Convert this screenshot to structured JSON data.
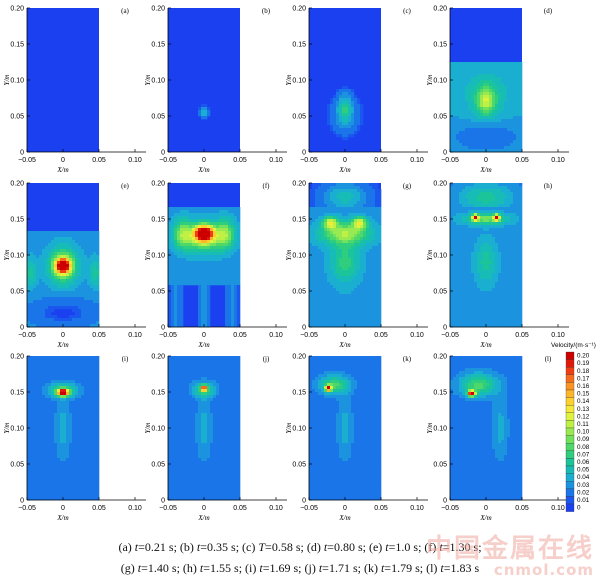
{
  "chart_data": {
    "type": "heatmap",
    "panels": [
      {
        "label": "(a)",
        "t": "0.21 s"
      },
      {
        "label": "(b)",
        "t": "0.35 s"
      },
      {
        "label": "(c)",
        "t": "0.58 s"
      },
      {
        "label": "(d)",
        "t": "0.80 s"
      },
      {
        "label": "(e)",
        "t": "1.0 s"
      },
      {
        "label": "(f)",
        "t": "1.30 s"
      },
      {
        "label": "(g)",
        "t": "1.40 s"
      },
      {
        "label": "(h)",
        "t": "1.55 s"
      },
      {
        "label": "(i)",
        "t": "1.69 s"
      },
      {
        "label": "(j)",
        "t": "1.71 s"
      },
      {
        "label": "(k)",
        "t": "1.79 s"
      },
      {
        "label": "(l)",
        "t": "1.83 s"
      }
    ],
    "xlabel": "X/m",
    "ylabel": "Y/m",
    "xlim": [
      -0.05,
      0.1
    ],
    "ylim": [
      0,
      0.2
    ],
    "xticks": [
      "−0.05",
      "0",
      "0.05",
      "0.10"
    ],
    "yticks": [
      "0",
      "0.05",
      "0.10",
      "0.15",
      "0.20"
    ],
    "colorbar": {
      "title": "Velocity/(m·s⁻¹)",
      "levels": [
        "0.20",
        "0.19",
        "0.18",
        "0.17",
        "0.16",
        "0.15",
        "0.14",
        "0.13",
        "0.12",
        "0.11",
        "0.10",
        "0.09",
        "0.08",
        "0.07",
        "0.06",
        "0.05",
        "0.04",
        "0.03",
        "0.02",
        "0.01",
        "0"
      ],
      "colors": [
        "#cc0000",
        "#e01a0a",
        "#f03d14",
        "#f76b1c",
        "#fb9424",
        "#fdb52a",
        "#fcd12f",
        "#f5e837",
        "#dff23e",
        "#bff046",
        "#99ea50",
        "#72e15b",
        "#4ed86a",
        "#2fce7f",
        "#1cc49a",
        "#18bcb6",
        "#1aaed0",
        "#1b93df",
        "#1a75e8",
        "#1a57ee",
        "#1a40f0"
      ]
    }
  },
  "caption": {
    "line1": [
      {
        "pre": "(a) ",
        "var": "t",
        "val": "=0.21 s; "
      },
      {
        "pre": "(b) ",
        "var": "t",
        "val": "=0.35 s; "
      },
      {
        "pre": "(c) ",
        "var": "T",
        "val": "=0.58 s; "
      },
      {
        "pre": "(d) ",
        "var": "t",
        "val": "=0.80 s; "
      },
      {
        "pre": "(e) ",
        "var": "t",
        "val": "=1.0 s; "
      },
      {
        "pre": "(f) ",
        "var": "t",
        "val": "=1.30 s;"
      }
    ],
    "line2": [
      {
        "pre": "(g) ",
        "var": "t",
        "val": "=1.40 s; "
      },
      {
        "pre": "(h) ",
        "var": "t",
        "val": "=1.55 s; "
      },
      {
        "pre": "(i) ",
        "var": "t",
        "val": "=1.69 s; "
      },
      {
        "pre": "(j) ",
        "var": "t",
        "val": "=1.71 s; "
      },
      {
        "pre": "(k) ",
        "var": "t",
        "val": "=1.79 s; "
      },
      {
        "pre": "(l) ",
        "var": "t",
        "val": "=1.83 s"
      }
    ]
  },
  "watermark": {
    "main": "中国金属在线",
    "sub": "cnmol.com"
  },
  "colors": {
    "background": "#1a40f0",
    "axis": "#000000"
  }
}
